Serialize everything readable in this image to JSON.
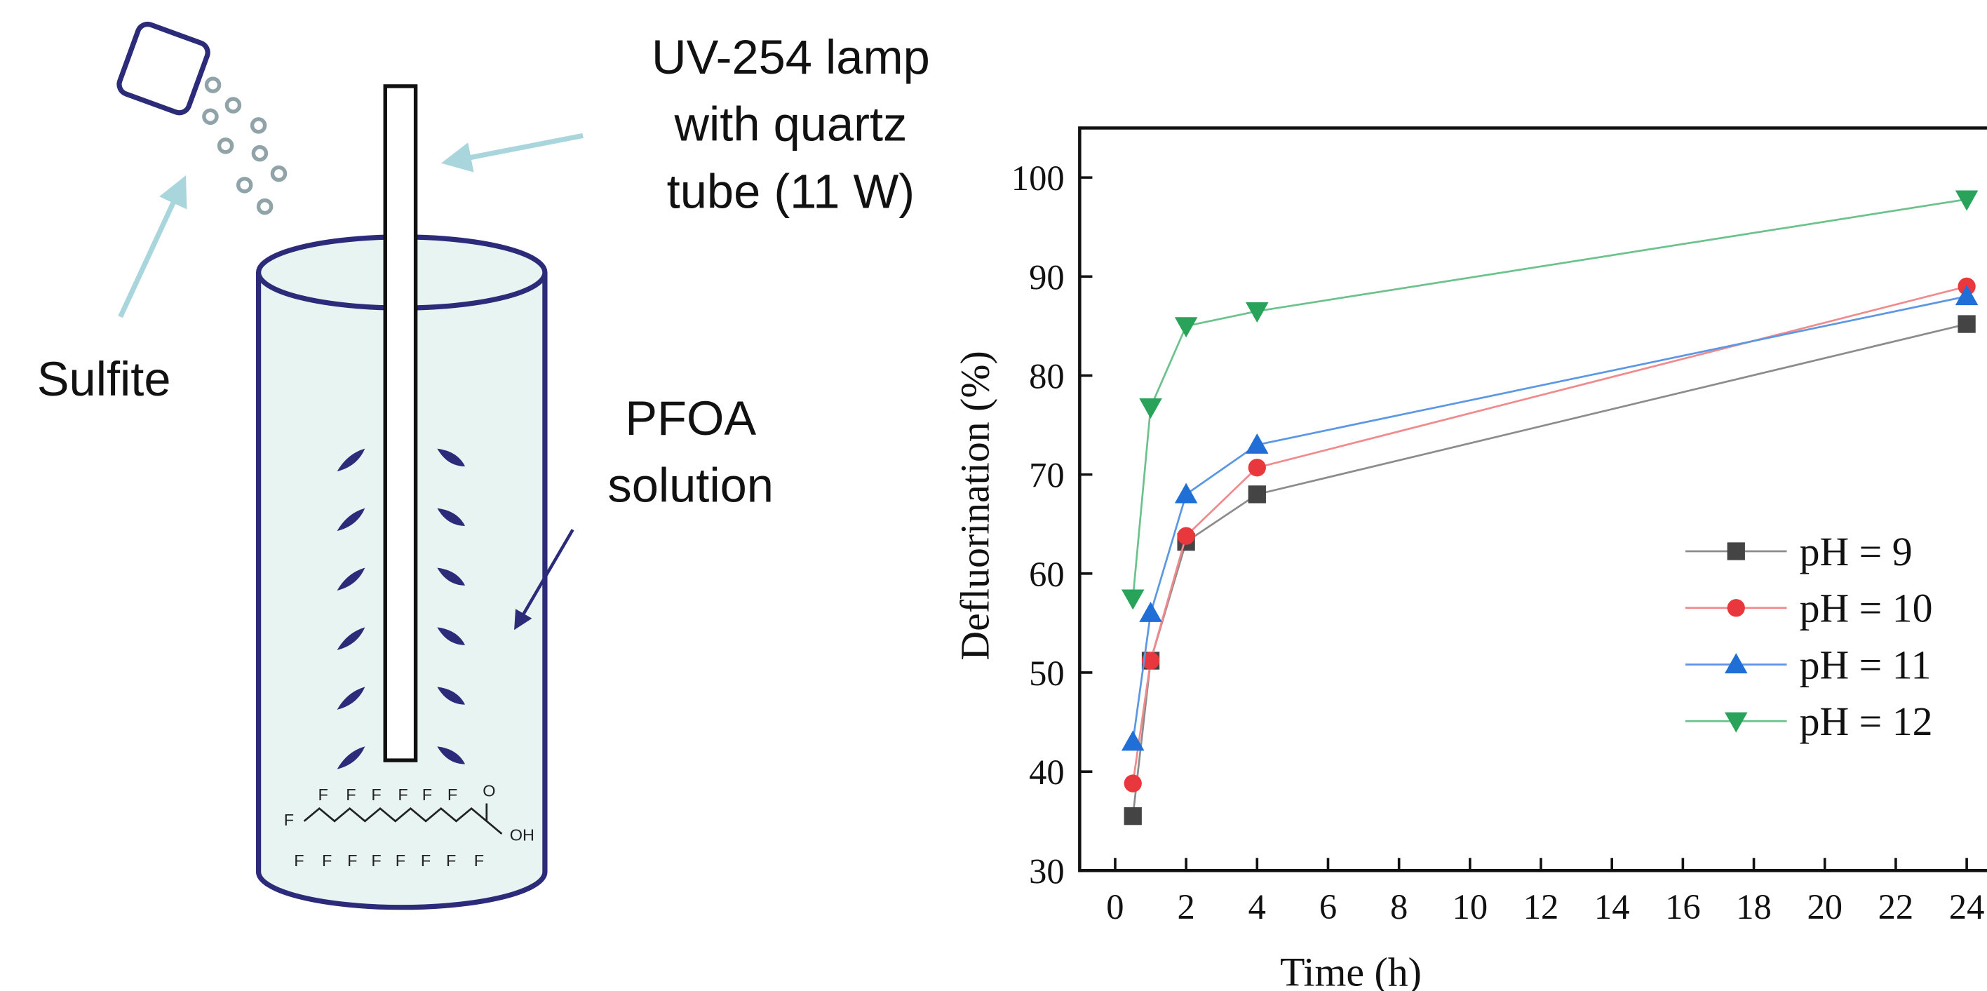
{
  "diagram": {
    "lamp_label": [
      "UV-254 lamp",
      "with quartz",
      "tube (11 W)"
    ],
    "sulfite_label": "Sulfite",
    "solution_label": [
      "PFOA",
      "solution"
    ],
    "molecule": {
      "top": [
        "F",
        "F",
        "F",
        "F",
        "F",
        "F",
        "O"
      ],
      "left": "F",
      "bottom": [
        "F",
        "F",
        "F",
        "F",
        "F",
        "F",
        "F",
        "F"
      ],
      "acid": "OH"
    }
  },
  "chart_data": {
    "type": "line",
    "x_label": "Time (h)",
    "y_label": "Defluorination (%)",
    "x": [
      0.5,
      1,
      2,
      4,
      24
    ],
    "series": [
      {
        "name": "pH = 9",
        "color": "#444444",
        "line_color": "#8c8c8c",
        "marker": "square",
        "values": [
          35.5,
          51.2,
          63.2,
          68,
          85.2
        ]
      },
      {
        "name": "pH = 10",
        "color": "#e8383d",
        "line_color": "#f08a8c",
        "marker": "circle",
        "values": [
          38.8,
          51.2,
          63.8,
          70.7,
          89
        ]
      },
      {
        "name": "pH = 11",
        "color": "#1f6fd6",
        "line_color": "#5c97e4",
        "marker": "triangle-up",
        "values": [
          43,
          56,
          68,
          73,
          88
        ]
      },
      {
        "name": "pH = 12",
        "color": "#2aa35a",
        "line_color": "#6cc28d",
        "marker": "triangle-down",
        "values": [
          57.5,
          76.8,
          85,
          86.5,
          97.8
        ]
      }
    ],
    "xlim": [
      -1,
      25
    ],
    "ylim": [
      30,
      105
    ],
    "xticks": [
      0,
      2,
      4,
      6,
      8,
      10,
      12,
      14,
      16,
      18,
      20,
      22,
      24
    ],
    "yticks": [
      30,
      40,
      50,
      60,
      70,
      80,
      90,
      100
    ],
    "legend": "right"
  }
}
